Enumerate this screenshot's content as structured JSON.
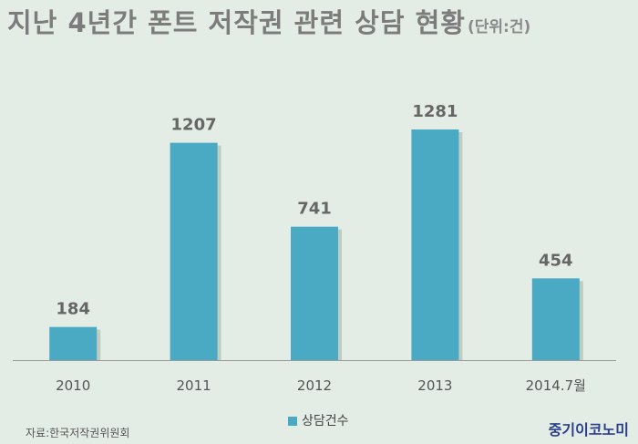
{
  "title": "지난 4년간 폰트 저작권 관련 상담 현황",
  "unit": "(단위:건)",
  "chart_data": {
    "type": "bar",
    "categories": [
      "2010",
      "2011",
      "2012",
      "2013",
      "2014.7월"
    ],
    "series": [
      {
        "name": "상담건수",
        "values": [
          184,
          1207,
          741,
          1281,
          454
        ]
      }
    ],
    "ylim": [
      0,
      1500
    ],
    "grid": false,
    "legend": "bottom"
  },
  "legend_label": "상담건수",
  "source": "자료:한국저작권위원회",
  "logo": "중기이코노미",
  "colors": {
    "bar": "#4aaac4",
    "background": "#e3ede5"
  }
}
